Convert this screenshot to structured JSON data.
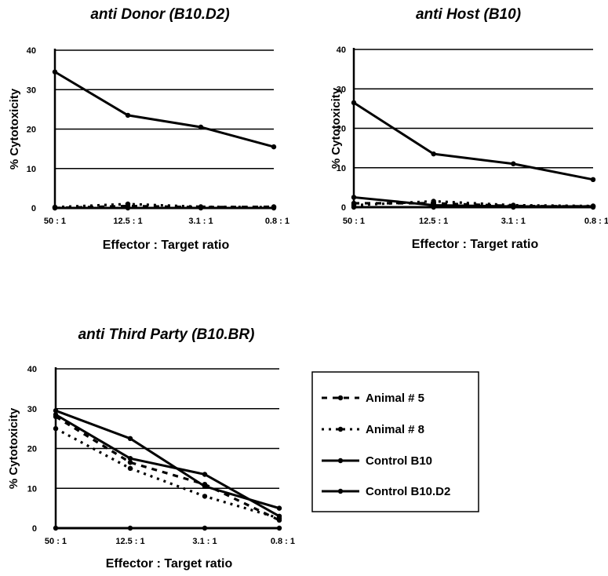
{
  "chart_data": [
    {
      "type": "line",
      "title": "anti Donor (B10.D2)",
      "xlabel": "Effector : Target ratio",
      "ylabel": "% Cytotoxicity",
      "categories": [
        "50 : 1",
        "12.5 : 1",
        "3.1 : 1",
        "0.8 : 1"
      ],
      "yticks": [
        "0",
        "10",
        "20",
        "30",
        "40"
      ],
      "ylim": [
        0,
        40
      ],
      "grid": true,
      "series": [
        {
          "name": "Animal # 5",
          "style": "dashed",
          "values": [
            0,
            0.5,
            0.2,
            0.3
          ]
        },
        {
          "name": "Animal # 8",
          "style": "dotted",
          "values": [
            0.2,
            1,
            0.3,
            0.2
          ]
        },
        {
          "name": "Control B10",
          "style": "solid",
          "values": [
            34.5,
            23.5,
            20.5,
            15.5
          ]
        },
        {
          "name": "Control B10.D2",
          "style": "solid",
          "values": [
            0,
            0,
            0,
            0
          ]
        }
      ]
    },
    {
      "type": "line",
      "title": "anti Host (B10)",
      "xlabel": "Effector : Target ratio",
      "ylabel": "% Cytotoxicity",
      "categories": [
        "50 : 1",
        "12.5 : 1",
        "3.1 : 1",
        "0.8 : 1"
      ],
      "yticks": [
        "0",
        "10",
        "20",
        "30",
        "40"
      ],
      "ylim": [
        0,
        40
      ],
      "grid": true,
      "series": [
        {
          "name": "Animal # 5",
          "style": "dashed",
          "values": [
            1,
            1,
            0.3,
            0.2
          ]
        },
        {
          "name": "Animal # 8",
          "style": "dotted",
          "values": [
            0.5,
            1.5,
            0.5,
            0.3
          ]
        },
        {
          "name": "Control B10",
          "style": "solid",
          "values": [
            0,
            0,
            0,
            0
          ]
        },
        {
          "name": "Control B10.D2",
          "style": "solid",
          "values": [
            26.5,
            13.5,
            11,
            7
          ]
        },
        {
          "name": "",
          "style": "solid",
          "values": [
            2.5,
            0.5,
            0.2,
            0.2
          ]
        }
      ]
    },
    {
      "type": "line",
      "title": "anti Third Party (B10.BR)",
      "xlabel": "Effector : Target ratio",
      "ylabel": "% Cytotoxicity",
      "categories": [
        "50 : 1",
        "12.5 : 1",
        "3.1 : 1",
        "0.8 : 1"
      ],
      "yticks": [
        "0",
        "10",
        "20",
        "30",
        "40"
      ],
      "ylim": [
        0,
        40
      ],
      "grid": true,
      "legend_position": "right",
      "series": [
        {
          "name": "Animal # 5",
          "style": "dashed",
          "values": [
            28,
            16.5,
            11,
            2
          ]
        },
        {
          "name": "Animal # 8",
          "style": "dotted",
          "values": [
            25,
            15,
            8,
            2.5
          ]
        },
        {
          "name": "Control B10",
          "style": "solid",
          "values": [
            28.5,
            17.5,
            13.5,
            3
          ]
        },
        {
          "name": "Control B10.D2",
          "style": "solid",
          "values": [
            29.5,
            22.5,
            10.5,
            5
          ]
        },
        {
          "name": "",
          "style": "solid",
          "values": [
            0,
            0,
            0,
            0
          ]
        }
      ]
    }
  ],
  "legend": [
    {
      "label": "Animal # 5",
      "style": "dashed"
    },
    {
      "label": "Animal # 8",
      "style": "dotted"
    },
    {
      "label": "Control B10",
      "style": "solid"
    },
    {
      "label": "Control B10.D2",
      "style": "solid"
    }
  ]
}
